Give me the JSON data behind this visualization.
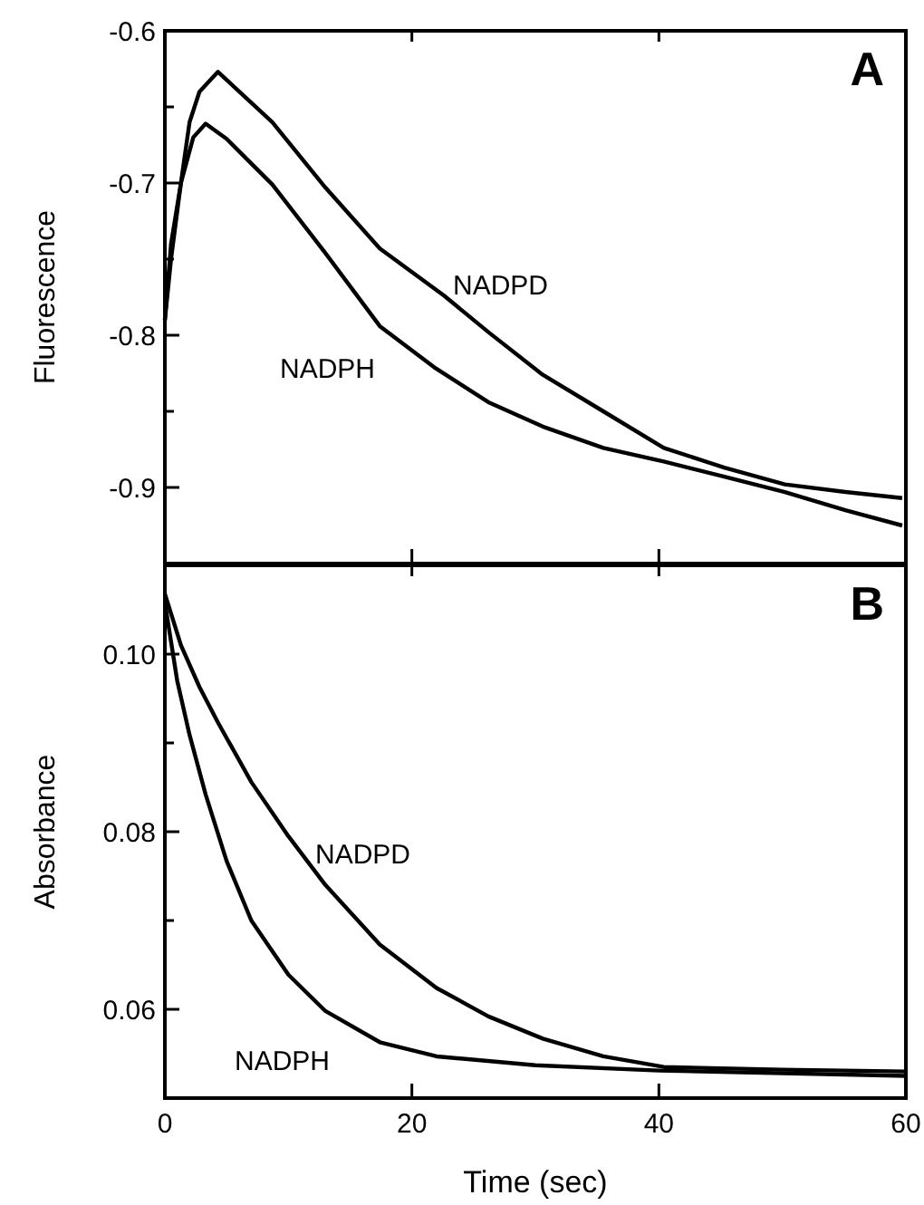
{
  "chart_data": [
    {
      "type": "line",
      "ylabel": "Fluorescence",
      "annotations": [
        "A"
      ],
      "xlim": [
        0,
        60
      ],
      "xticks": [
        {
          "value": 0,
          "label": null
        },
        {
          "value": 20,
          "label": null
        },
        {
          "value": 40,
          "label": null
        },
        {
          "value": 60,
          "label": null
        }
      ],
      "ylim": [
        -0.95,
        -0.6
      ],
      "yticks": [
        -0.6,
        {
          "value": -0.65,
          "label": null
        },
        -0.7,
        {
          "value": -0.75,
          "label": null
        },
        -0.8,
        {
          "value": -0.85,
          "label": null
        },
        -0.9
      ],
      "tick_labels": "y",
      "grid": false,
      "marker": "none",
      "line_style": "solid",
      "series": [
        {
          "name": "NADPD",
          "color": "#000000",
          "x": [
            0,
            0.5,
            1.3,
            2,
            2.8,
            4.3,
            8.7,
            13,
            17.4,
            22.6,
            26.2,
            30.6,
            35.5,
            40.4,
            45.3,
            50.2,
            55.1,
            59.7
          ],
          "values": [
            -0.79,
            -0.74,
            -0.7,
            -0.66,
            -0.64,
            -0.627,
            -0.66,
            -0.703,
            -0.743,
            -0.774,
            -0.798,
            -0.826,
            -0.85,
            -0.874,
            -0.887,
            -0.898,
            -0.903,
            -0.907
          ]
        },
        {
          "name": "NADPH",
          "color": "#000000",
          "x": [
            0,
            0.5,
            1.3,
            2.3,
            3.3,
            5,
            8.7,
            13,
            17.4,
            21.8,
            26.2,
            30.6,
            35.5,
            40.4,
            45.3,
            50.2,
            55.1,
            59.7
          ],
          "values": [
            -0.79,
            -0.75,
            -0.7,
            -0.67,
            -0.661,
            -0.671,
            -0.701,
            -0.746,
            -0.794,
            -0.821,
            -0.844,
            -0.86,
            -0.874,
            -0.883,
            -0.893,
            -0.903,
            -0.915,
            -0.925
          ]
        }
      ]
    },
    {
      "type": "line",
      "xlabel": "Time (sec)",
      "ylabel": "Absorbance",
      "annotations": [
        "B"
      ],
      "xlim": [
        0,
        60
      ],
      "xticks": [
        0,
        20,
        40,
        60
      ],
      "ylim": [
        0.05,
        0.11
      ],
      "yticks": [
        {
          "value": 0.06,
          "label": "0.06"
        },
        {
          "value": 0.07,
          "label": null
        },
        {
          "value": 0.08,
          "label": "0.08"
        },
        {
          "value": 0.09,
          "label": null
        },
        {
          "value": 0.1,
          "label": "0.10"
        }
      ],
      "grid": false,
      "marker": "none",
      "line_style": "solid",
      "series": [
        {
          "name": "NADPD",
          "color": "#000000",
          "x": [
            0,
            1.3,
            2.8,
            4.3,
            7,
            10,
            13,
            17.4,
            22,
            26.2,
            30.6,
            35.5,
            40.4,
            50,
            60
          ],
          "values": [
            0.1068,
            0.101,
            0.0963,
            0.0923,
            0.0856,
            0.0795,
            0.074,
            0.0673,
            0.0624,
            0.0592,
            0.0567,
            0.0547,
            0.0535,
            0.0532,
            0.053
          ]
        },
        {
          "name": "NADPH",
          "color": "#000000",
          "x": [
            0,
            1,
            2,
            3.3,
            5,
            7,
            10,
            13,
            17.4,
            22,
            30,
            40,
            60
          ],
          "values": [
            0.1058,
            0.097,
            0.0909,
            0.0842,
            0.0767,
            0.07,
            0.0639,
            0.0598,
            0.0563,
            0.0547,
            0.0537,
            0.0531,
            0.0525
          ]
        }
      ]
    }
  ]
}
